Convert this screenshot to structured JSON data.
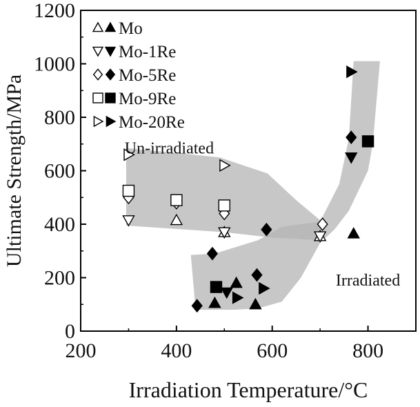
{
  "chart_data": {
    "type": "scatter",
    "xlabel": "Irradiation Temperature/°C",
    "ylabel": "Ultimate Strength/MPa",
    "xlim": [
      200,
      900
    ],
    "ylim": [
      0,
      1200
    ],
    "xticks": [
      200,
      400,
      600,
      800
    ],
    "yticks": [
      0,
      200,
      400,
      600,
      800,
      1000,
      1200
    ],
    "grid": false,
    "legend_position": "top-left",
    "legend": [
      {
        "label": "Mo",
        "marker": "triangle-up"
      },
      {
        "label": "Mo-1Re",
        "marker": "triangle-down"
      },
      {
        "label": "Mo-5Re",
        "marker": "diamond"
      },
      {
        "label": "Mo-9Re",
        "marker": "square"
      },
      {
        "label": "Mo-20Re",
        "marker": "triangle-right"
      }
    ],
    "annotations": [
      {
        "text": "Un-irradiated",
        "x": 385,
        "y": 665
      },
      {
        "text": "Irradiated",
        "x": 800,
        "y": 170
      }
    ],
    "regions": [
      {
        "name": "un-irradiated",
        "color": "#b4b4b4",
        "polygon": [
          [
            295,
            685
          ],
          [
            490,
            650
          ],
          [
            590,
            590
          ],
          [
            650,
            490
          ],
          [
            710,
            400
          ],
          [
            700,
            340
          ],
          [
            600,
            350
          ],
          [
            500,
            370
          ],
          [
            295,
            395
          ]
        ]
      },
      {
        "name": "irradiated",
        "color": "#b4b4b4",
        "polygon": [
          [
            430,
            285
          ],
          [
            480,
            290
          ],
          [
            570,
            340
          ],
          [
            620,
            390
          ],
          [
            700,
            410
          ],
          [
            740,
            550
          ],
          [
            760,
            720
          ],
          [
            770,
            1010
          ],
          [
            825,
            1010
          ],
          [
            810,
            700
          ],
          [
            800,
            600
          ],
          [
            760,
            450
          ],
          [
            730,
            380
          ],
          [
            700,
            330
          ],
          [
            660,
            200
          ],
          [
            620,
            110
          ],
          [
            570,
            85
          ],
          [
            520,
            80
          ],
          [
            440,
            80
          ]
        ]
      }
    ],
    "series": [
      {
        "name": "Mo",
        "condition": "un-irradiated",
        "marker": "triangle-up",
        "filled": false,
        "points": [
          [
            400,
            415
          ],
          [
            500,
            370
          ],
          [
            700,
            355
          ]
        ]
      },
      {
        "name": "Mo",
        "condition": "irradiated",
        "marker": "triangle-up",
        "filled": true,
        "points": [
          [
            480,
            105
          ],
          [
            525,
            180
          ],
          [
            565,
            100
          ],
          [
            770,
            365
          ]
        ]
      },
      {
        "name": "Mo-1Re",
        "condition": "un-irradiated",
        "marker": "triangle-down",
        "filled": false,
        "points": [
          [
            300,
            415
          ],
          [
            500,
            370
          ],
          [
            700,
            355
          ]
        ]
      },
      {
        "name": "Mo-1Re",
        "condition": "irradiated",
        "marker": "triangle-down",
        "filled": true,
        "points": [
          [
            505,
            145
          ],
          [
            765,
            650
          ]
        ]
      },
      {
        "name": "Mo-5Re",
        "condition": "un-irradiated",
        "marker": "diamond",
        "filled": false,
        "points": [
          [
            300,
            500
          ],
          [
            400,
            480
          ],
          [
            500,
            440
          ],
          [
            705,
            400
          ]
        ]
      },
      {
        "name": "Mo-5Re",
        "condition": "irradiated",
        "marker": "diamond",
        "filled": true,
        "points": [
          [
            443,
            95
          ],
          [
            475,
            290
          ],
          [
            568,
            210
          ],
          [
            588,
            380
          ],
          [
            765,
            725
          ]
        ]
      },
      {
        "name": "Mo-9Re",
        "condition": "un-irradiated",
        "marker": "square",
        "filled": false,
        "points": [
          [
            300,
            525
          ],
          [
            400,
            490
          ],
          [
            500,
            470
          ]
        ]
      },
      {
        "name": "Mo-9Re",
        "condition": "irradiated",
        "marker": "square",
        "filled": true,
        "points": [
          [
            483,
            165
          ],
          [
            800,
            710
          ]
        ]
      },
      {
        "name": "Mo-20Re",
        "condition": "un-irradiated",
        "marker": "triangle-right",
        "filled": false,
        "points": [
          [
            300,
            660
          ],
          [
            500,
            620
          ]
        ]
      },
      {
        "name": "Mo-20Re",
        "condition": "irradiated",
        "marker": "triangle-right",
        "filled": true,
        "points": [
          [
            527,
            125
          ],
          [
            582,
            160
          ],
          [
            765,
            970
          ]
        ]
      }
    ]
  }
}
